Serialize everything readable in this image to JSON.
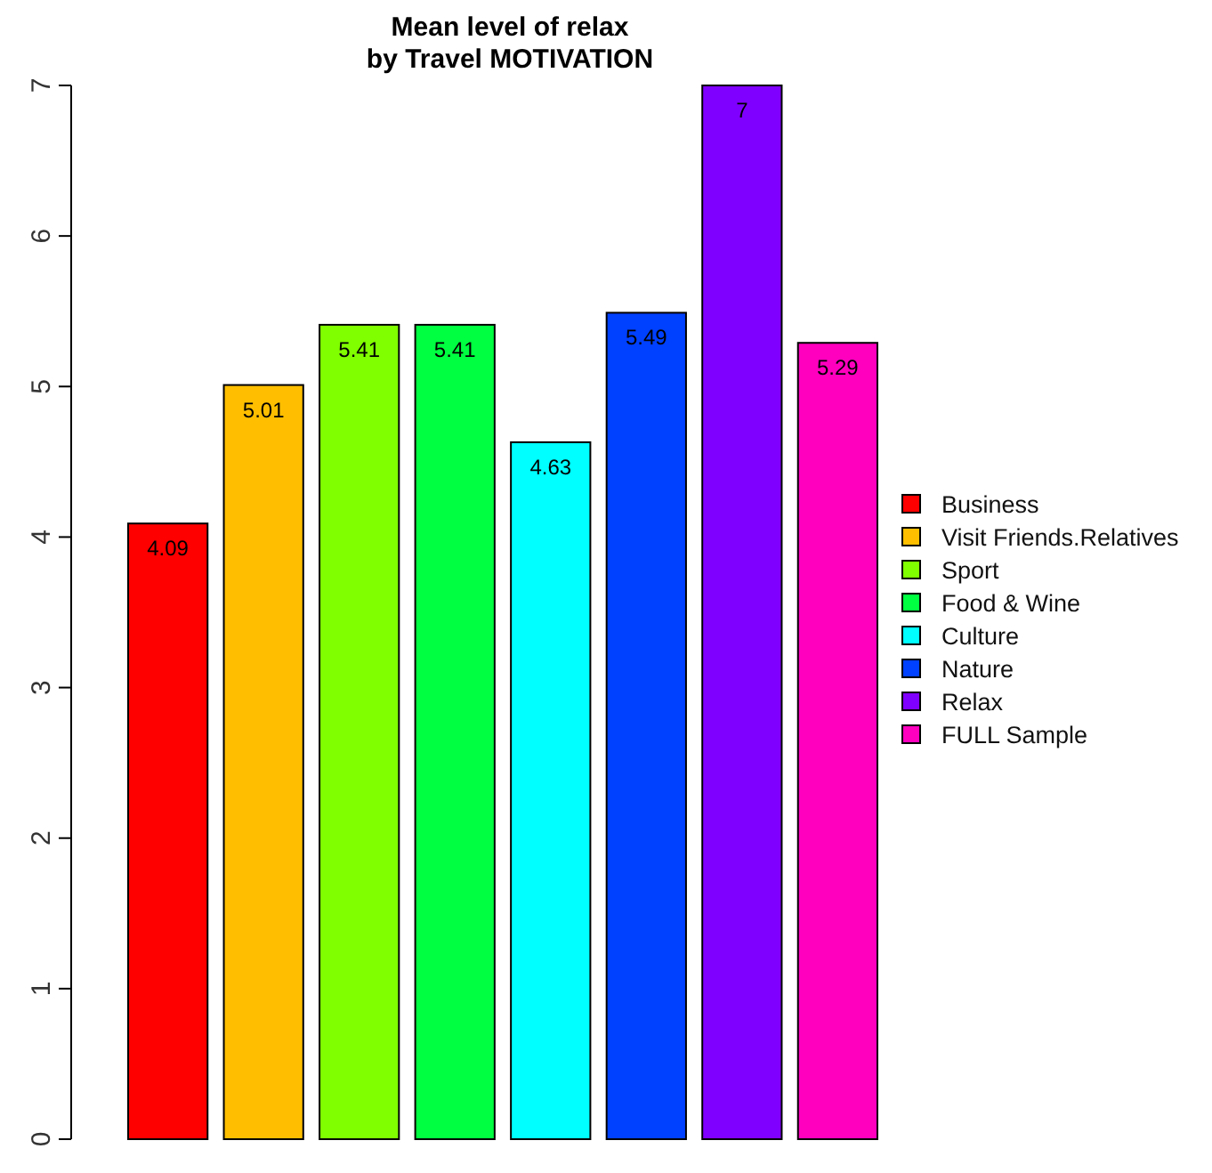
{
  "chart_data": {
    "type": "bar",
    "title": "Mean level of relax\nby Travel MOTIVATION",
    "categories": [
      null,
      null,
      null,
      null,
      null,
      null,
      null,
      null
    ],
    "series": [
      {
        "name": "Business",
        "color": "#ff0000",
        "values": [
          4.09,
          null,
          null,
          null,
          null,
          null,
          null,
          null
        ]
      },
      {
        "name": "Visit Friends.Relatives",
        "color": "#ffbf00",
        "values": [
          null,
          5.01,
          null,
          null,
          null,
          null,
          null,
          null
        ]
      },
      {
        "name": "Sport",
        "color": "#80ff00",
        "values": [
          null,
          null,
          5.41,
          null,
          null,
          null,
          null,
          null
        ]
      },
      {
        "name": "Food & Wine",
        "color": "#00ff40",
        "values": [
          null,
          null,
          null,
          5.41,
          null,
          null,
          null,
          null
        ]
      },
      {
        "name": "Culture",
        "color": "#00ffff",
        "values": [
          null,
          null,
          null,
          null,
          4.63,
          null,
          null,
          null
        ]
      },
      {
        "name": "Nature",
        "color": "#0040ff",
        "values": [
          null,
          null,
          null,
          null,
          null,
          5.49,
          null,
          null
        ]
      },
      {
        "name": "Relax",
        "color": "#8000ff",
        "values": [
          null,
          null,
          null,
          null,
          null,
          null,
          7,
          null
        ]
      },
      {
        "name": "FULL Sample",
        "color": "#ff00bf",
        "values": [
          null,
          null,
          null,
          null,
          null,
          null,
          null,
          5.29
        ]
      }
    ],
    "ylim": [
      0,
      7
    ],
    "yticks": [
      0,
      1,
      2,
      3,
      4,
      5,
      6,
      7
    ],
    "stacked": true,
    "tick_labels": "y",
    "legend": "right",
    "data_labels": true,
    "grid": false
  }
}
